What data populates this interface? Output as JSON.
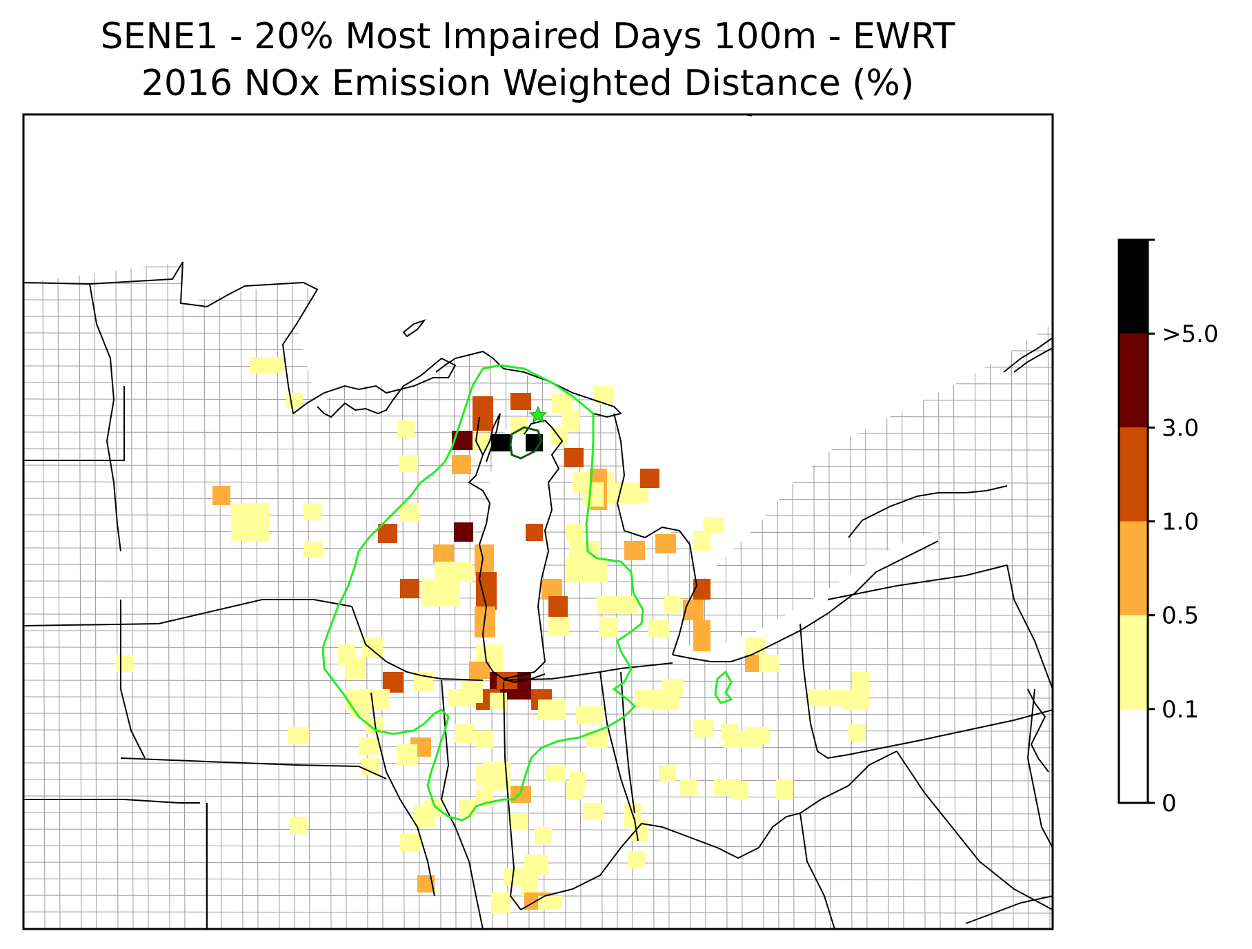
{
  "title_line1": "SENE1 - 20% Most Impaired Days 100m - EWRT",
  "title_line2": "2016 NOx Emission Weighted Distance (%)",
  "colorbar": {
    "bins": [
      {
        "from": "0",
        "to": "0.1",
        "color": "#ffffff"
      },
      {
        "from": "0.1",
        "to": "0.5",
        "color": "#ffff99"
      },
      {
        "from": "0.5",
        "to": "1.0",
        "color": "#fdae3a"
      },
      {
        "from": "1.0",
        "to": "3.0",
        "color": "#cc4c02"
      },
      {
        "from": "3.0",
        "to": ">5.0",
        "color": "#6a0000"
      },
      {
        "from": ">5.0",
        "to": "",
        "color": "#000000"
      }
    ],
    "tick_labels": [
      "0",
      "0.1",
      "0.5",
      "1.0",
      "3.0",
      ">5.0"
    ]
  },
  "colors": {
    "contour_outer": "#22ee22",
    "contour_inner": "#0b5a0b",
    "site_marker": "#22ee22",
    "state_border": "#000000",
    "county_border": "#999999"
  },
  "site_marker_symbol": "star"
}
